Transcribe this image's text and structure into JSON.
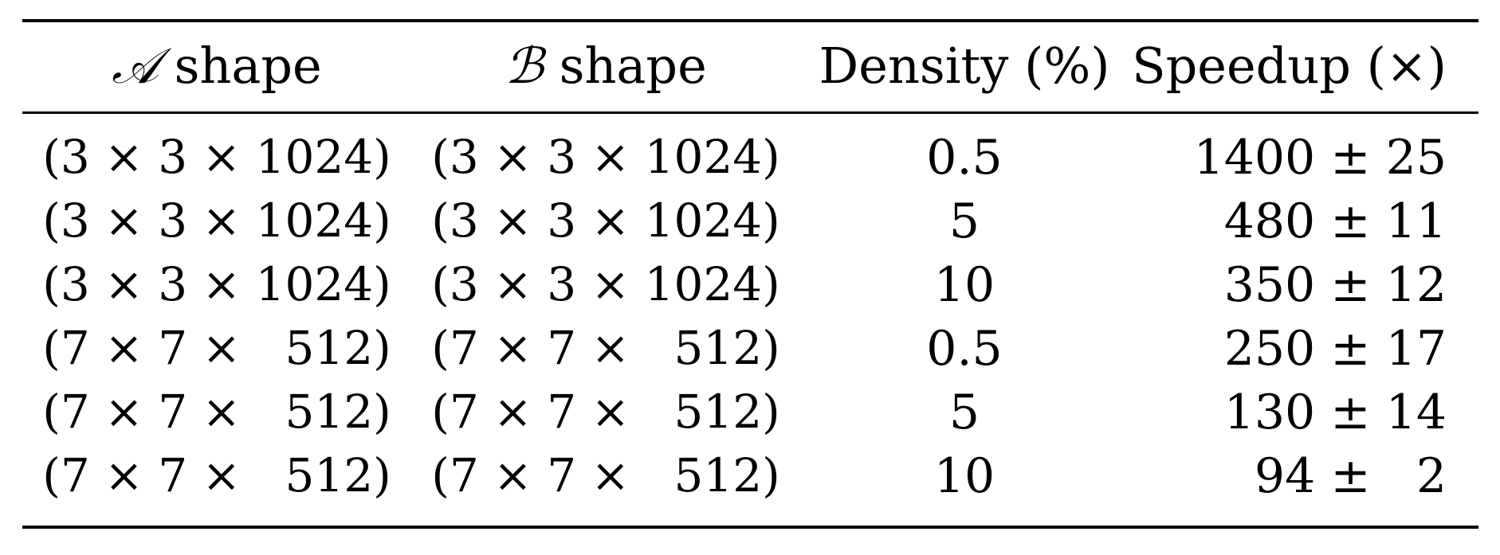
{
  "table": {
    "headers": {
      "a_symbol": "𝒜",
      "a_text": " shape",
      "b_symbol": "ℬ",
      "b_text": " shape",
      "density": "Density (%)",
      "speedup": "Speedup (×)"
    },
    "rows": [
      {
        "a_shape": "(3 × 3 × 1024)",
        "b_shape": "(3 × 3 × 1024)",
        "density": "0.5",
        "speedup": "1400 ± 25"
      },
      {
        "a_shape": "(3 × 3 × 1024)",
        "b_shape": "(3 × 3 × 1024)",
        "density": "5",
        "speedup": "480 ± 11"
      },
      {
        "a_shape": "(3 × 3 × 1024)",
        "b_shape": "(3 × 3 × 1024)",
        "density": "10",
        "speedup": "350 ± 12"
      },
      {
        "a_shape": "(7 × 7 ×   512)",
        "b_shape": "(7 × 7 ×   512)",
        "density": "0.5",
        "speedup": "250 ± 17"
      },
      {
        "a_shape": "(7 × 7 ×   512)",
        "b_shape": "(7 × 7 ×   512)",
        "density": "5",
        "speedup": "130 ± 14"
      },
      {
        "a_shape": "(7 × 7 ×   512)",
        "b_shape": "(7 × 7 ×   512)",
        "density": "10",
        "speedup": "94 ±   2"
      }
    ]
  }
}
